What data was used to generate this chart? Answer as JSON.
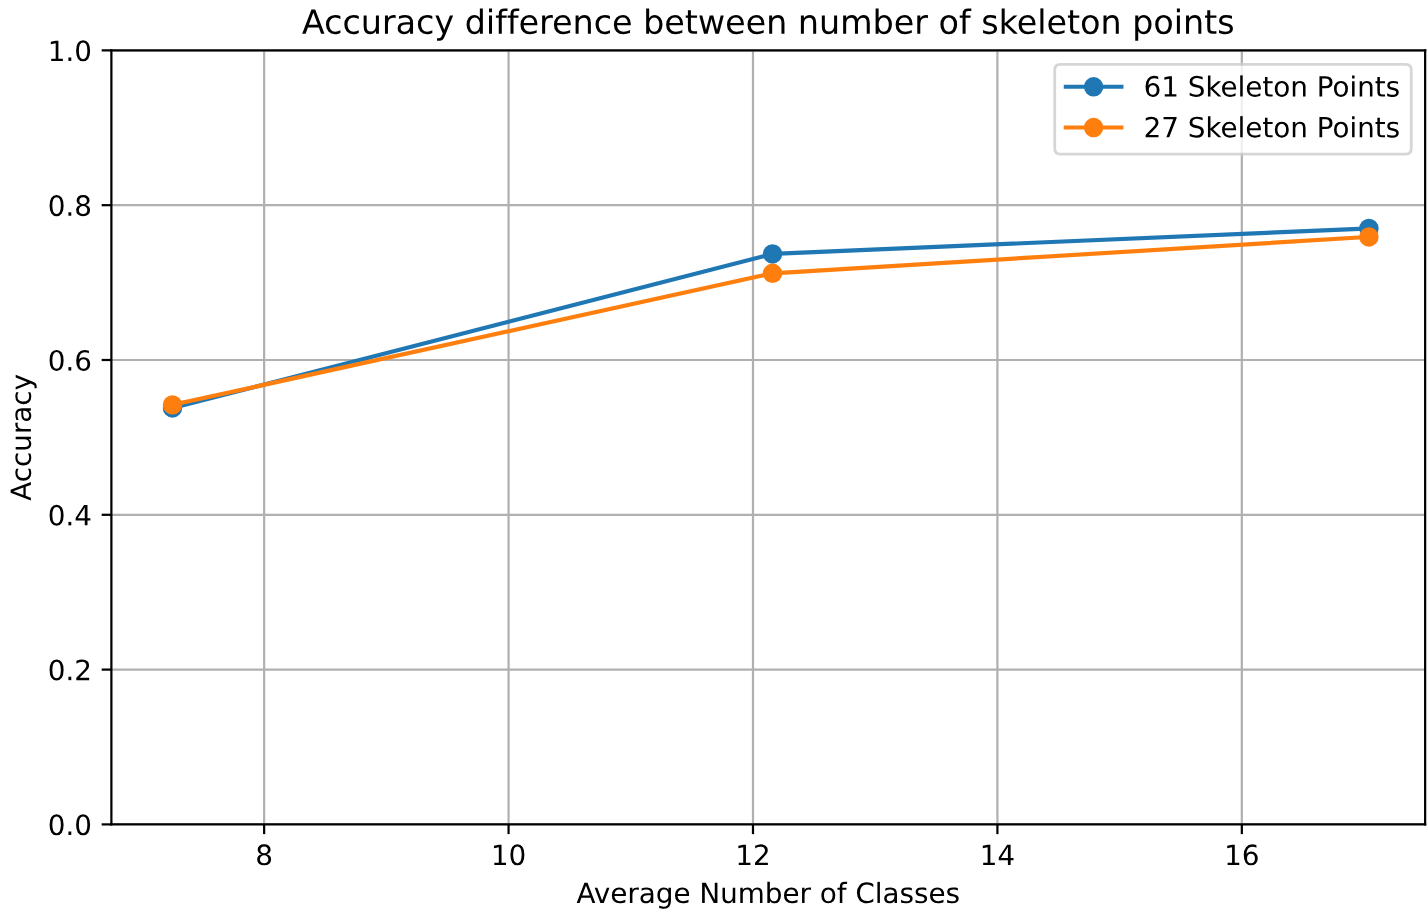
{
  "chart_data": {
    "type": "line",
    "title": "Accuracy difference between number of skeleton points",
    "xlabel": "Average Number of Classes",
    "ylabel": "Accuracy",
    "x": [
      7.25,
      12.16,
      17.04
    ],
    "series": [
      {
        "name": "61 Skeleton Points",
        "color": "#1f77b4",
        "values": [
          0.538,
          0.737,
          0.77
        ]
      },
      {
        "name": "27 Skeleton Points",
        "color": "#ff7f0e",
        "values": [
          0.542,
          0.712,
          0.759
        ]
      }
    ],
    "xlim": [
      6.75,
      17.5
    ],
    "xticks": [
      8,
      10,
      12,
      14,
      16
    ],
    "ylim": [
      0,
      1.0
    ],
    "yticks": [
      {
        "value": 0,
        "label": "0.0"
      },
      {
        "value": 0.2,
        "label": "0.2"
      },
      {
        "value": 0.4,
        "label": "0.4"
      },
      {
        "value": 0.6,
        "label": "0.6"
      },
      {
        "value": 0.8,
        "label": "0.8"
      },
      {
        "value": 1.0,
        "label": "1.0"
      }
    ],
    "grid": true,
    "legend": "top right",
    "marker": "circle",
    "line_style": "solid"
  }
}
